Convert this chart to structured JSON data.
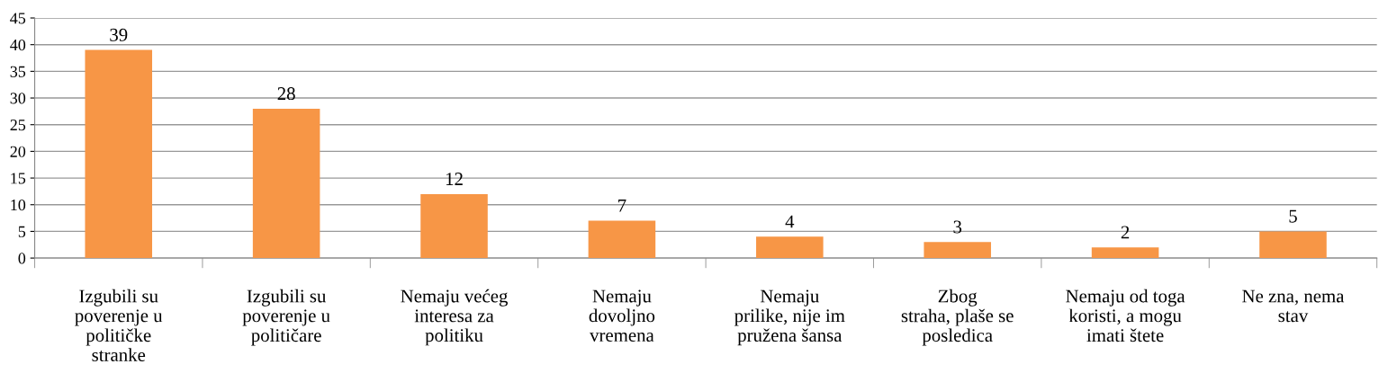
{
  "chart_data": {
    "type": "bar",
    "categories": [
      "Izgubili su\npoverenje u\npolitičke\nstranke",
      "Izgubili su\npoverenje u\npolitičare",
      "Nemaju većeg\ninteresa za\npolitiku",
      "Nemaju\ndovoljno\nvremena",
      "Nemaju\nprilike, nije im\npružena šansa",
      "Zbog\nstraha, plaše se\nposledica",
      "Nemaju od toga\nkoristi, a mogu\nimati štete",
      "Ne zna, nema\nstav"
    ],
    "values": [
      39,
      28,
      12,
      7,
      4,
      3,
      2,
      5
    ],
    "color": "#f79646",
    "ylim": [
      0,
      45
    ],
    "yticks": [
      0,
      5,
      10,
      15,
      20,
      25,
      30,
      35,
      40,
      45
    ],
    "grid": "y",
    "data_labels": true
  }
}
